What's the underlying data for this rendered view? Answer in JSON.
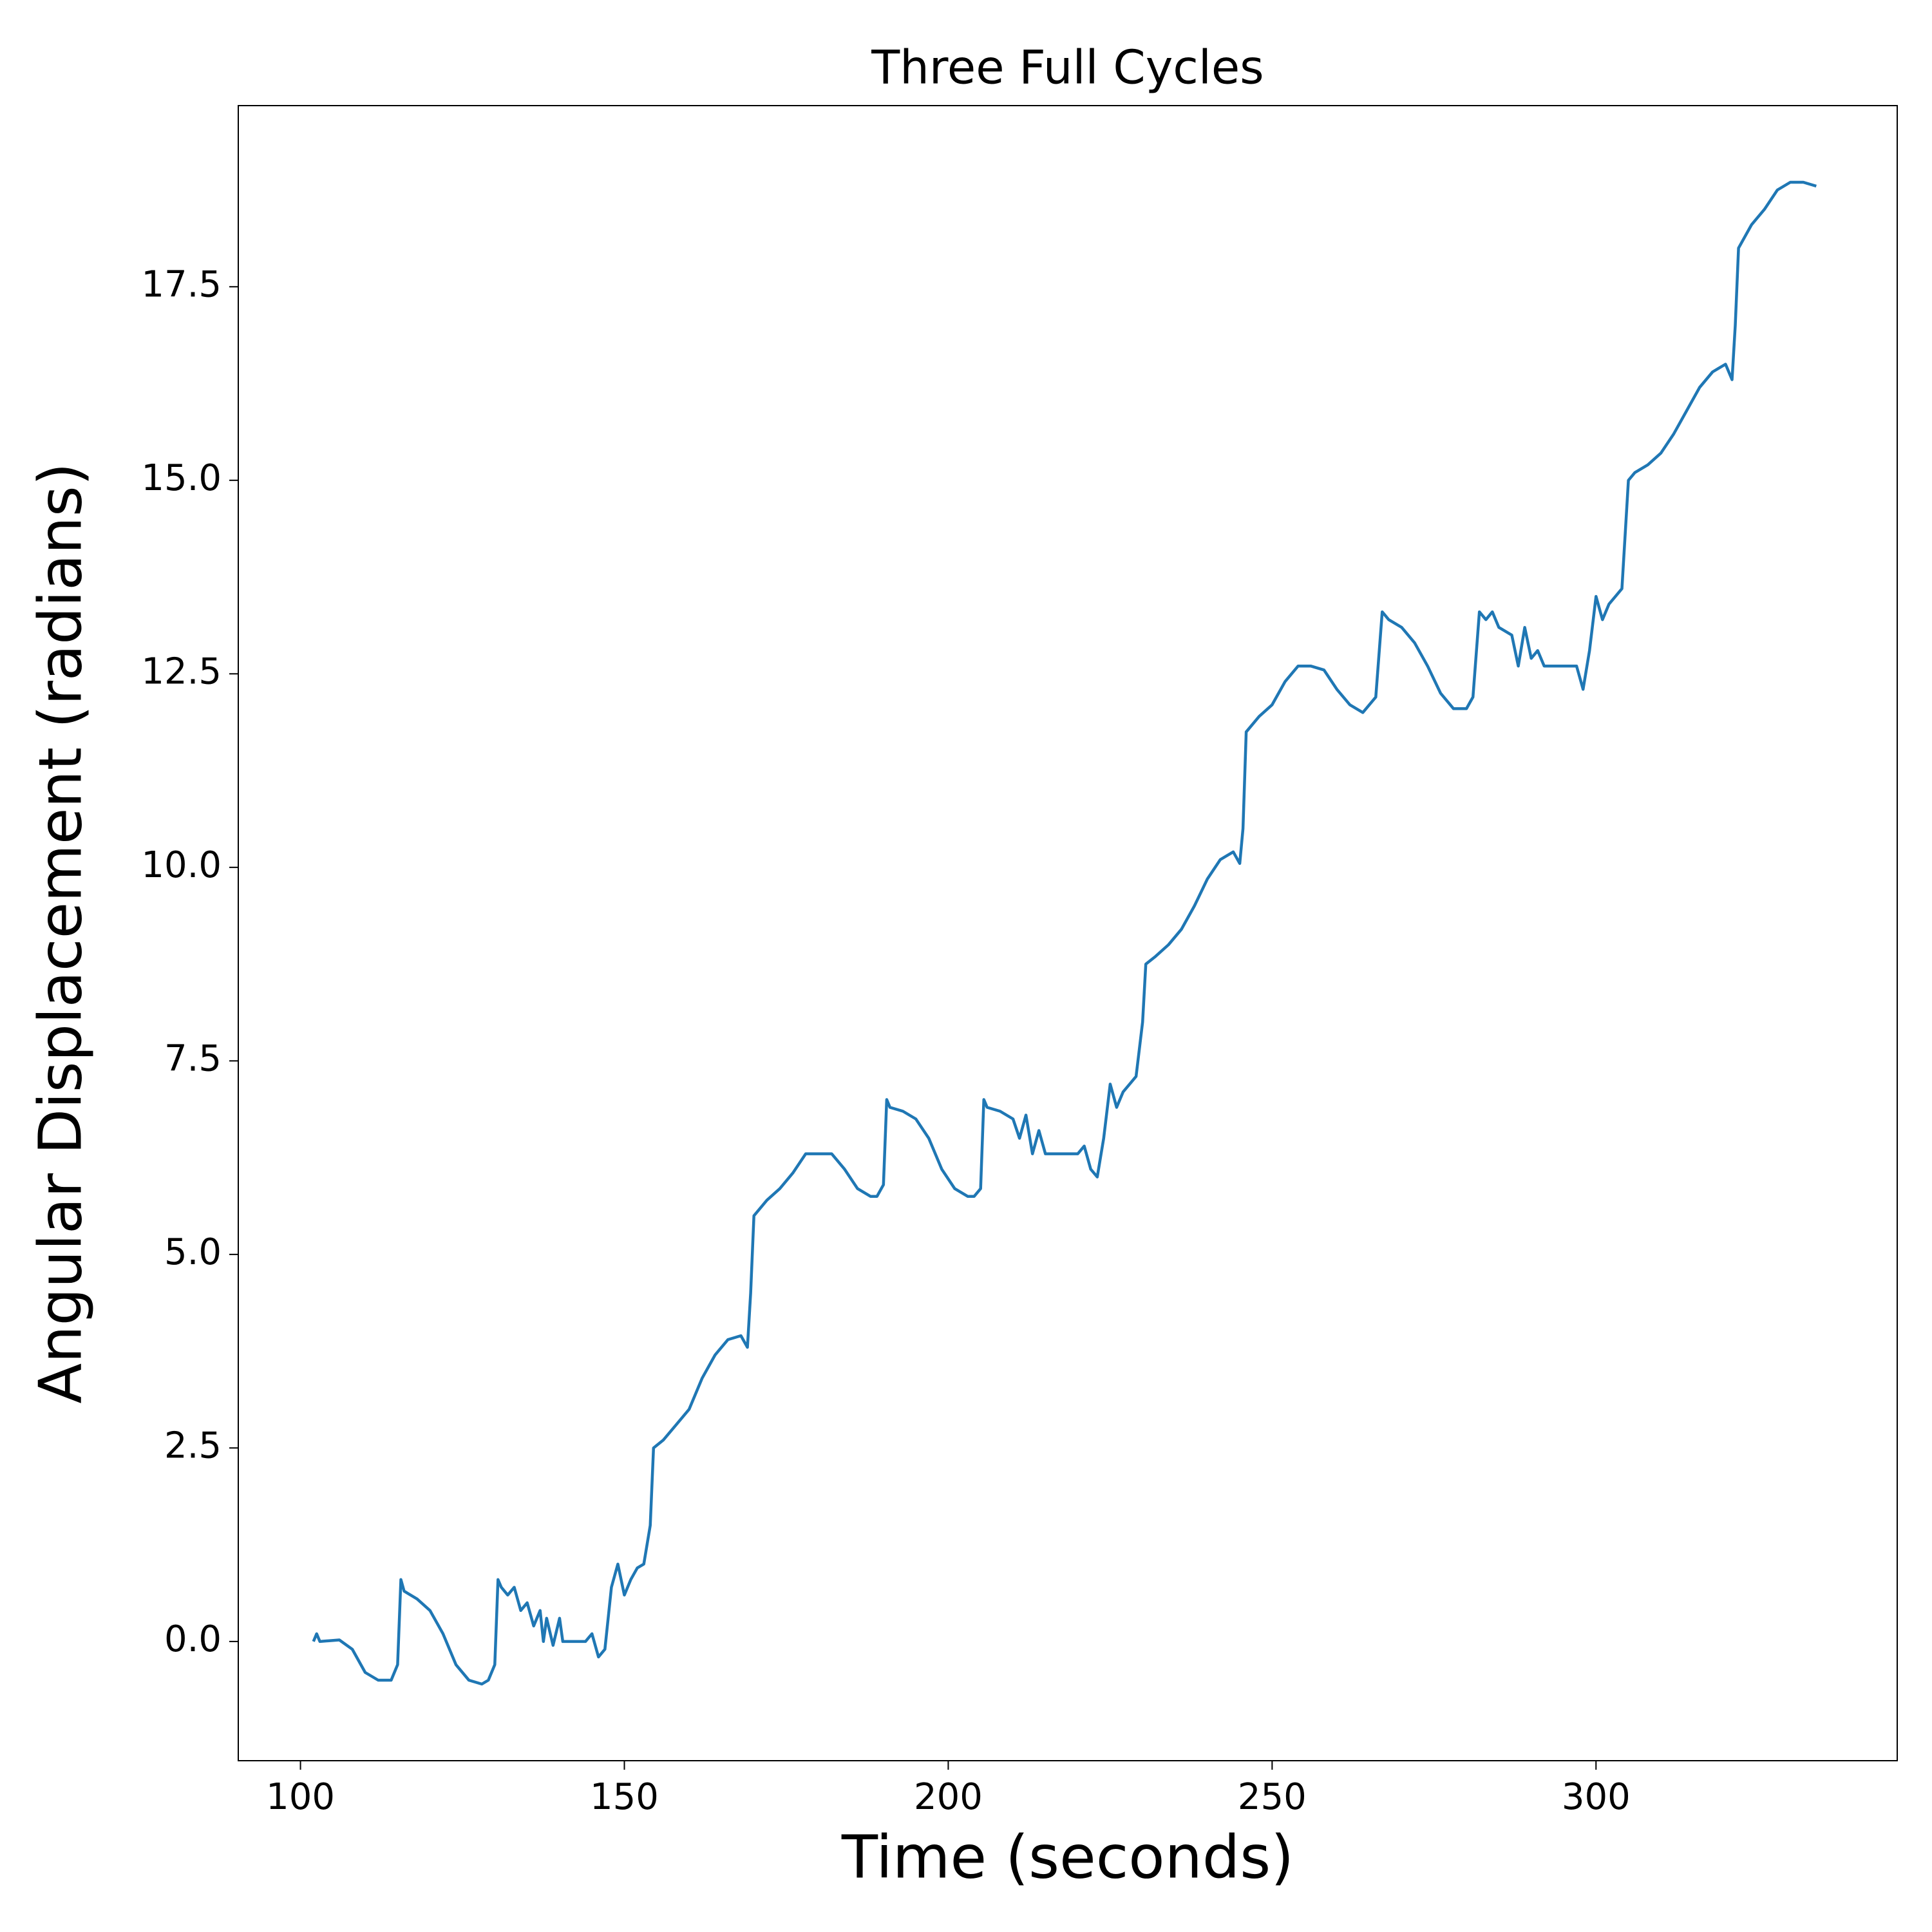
{
  "chart_data": {
    "type": "line",
    "title": "Three Full Cycles",
    "x_label": "Time (seconds)",
    "y_label": "Angular Displacement (radians)",
    "xlim": [
      90.4,
      346.5
    ],
    "ylim": [
      -1.54,
      19.84
    ],
    "xticks": [
      100,
      150,
      200,
      250,
      300
    ],
    "yticks": [
      {
        "value": 0,
        "label": "0.0"
      },
      2.5,
      {
        "value": 5,
        "label": "5.0"
      },
      7.5,
      {
        "value": 10,
        "label": "10.0"
      },
      12.5,
      {
        "value": 15,
        "label": "15.0"
      },
      17.5
    ],
    "grid": false,
    "series": [
      {
        "color": "#1f77b4",
        "x": [
          102,
          102.5,
          103,
          106,
          108,
          110,
          112,
          114,
          115,
          115.5,
          116,
          118,
          120,
          122,
          124,
          126,
          128,
          129,
          130,
          130.5,
          131,
          132,
          133,
          134,
          135,
          136,
          137,
          137.5,
          138,
          139,
          140,
          140.5,
          142,
          144,
          145,
          146,
          147,
          148,
          149,
          150,
          151,
          152,
          153,
          154,
          154.5,
          156,
          158,
          160,
          162,
          164,
          166,
          168,
          169,
          169.5,
          170,
          172,
          174,
          176,
          178,
          180,
          182,
          184,
          186,
          188,
          189,
          190,
          190.5,
          191,
          193,
          195,
          197,
          199,
          201,
          203,
          204,
          205,
          205.5,
          206,
          208,
          210,
          211,
          212,
          213,
          214,
          215,
          217,
          219,
          220,
          221,
          222,
          223,
          224,
          225,
          226,
          227,
          228,
          229,
          230,
          230.5,
          232,
          234,
          236,
          238,
          240,
          242,
          244,
          245,
          245.5,
          246,
          248,
          250,
          252,
          254,
          256,
          258,
          260,
          262,
          264,
          266,
          267,
          268,
          270,
          272,
          274,
          276,
          278,
          280,
          281,
          282,
          283,
          284,
          285,
          287,
          288,
          289,
          290,
          291,
          292,
          294,
          296,
          297,
          298,
          299,
          300,
          301,
          302,
          303,
          304,
          305,
          306,
          308,
          310,
          312,
          314,
          316,
          318,
          320,
          321,
          321.5,
          322,
          324,
          326,
          328,
          330,
          332,
          334
        ],
        "values": [
          0.0,
          0.1,
          0.0,
          0.02,
          -0.1,
          -0.4,
          -0.5,
          -0.5,
          -0.3,
          0.8,
          0.65,
          0.55,
          0.4,
          0.1,
          -0.3,
          -0.5,
          -0.55,
          -0.5,
          -0.3,
          0.8,
          0.7,
          0.6,
          0.7,
          0.4,
          0.5,
          0.2,
          0.4,
          0.0,
          0.3,
          -0.05,
          0.3,
          0.0,
          0.0,
          0.0,
          0.1,
          -0.2,
          -0.1,
          0.7,
          1.0,
          0.6,
          0.8,
          0.95,
          1.0,
          1.5,
          2.5,
          2.6,
          2.8,
          3.0,
          3.4,
          3.7,
          3.9,
          3.95,
          3.8,
          4.5,
          5.5,
          5.7,
          5.85,
          6.05,
          6.3,
          6.3,
          6.3,
          6.1,
          5.85,
          5.75,
          5.75,
          5.9,
          7.0,
          6.9,
          6.85,
          6.75,
          6.5,
          6.1,
          5.85,
          5.75,
          5.75,
          5.85,
          7.0,
          6.9,
          6.85,
          6.75,
          6.5,
          6.8,
          6.3,
          6.6,
          6.3,
          6.3,
          6.3,
          6.3,
          6.4,
          6.1,
          6.0,
          6.5,
          7.2,
          6.9,
          7.1,
          7.2,
          7.3,
          8.0,
          8.75,
          8.85,
          9.0,
          9.2,
          9.5,
          9.85,
          10.1,
          10.2,
          10.05,
          10.5,
          11.75,
          11.95,
          12.1,
          12.4,
          12.6,
          12.6,
          12.55,
          12.3,
          12.1,
          12.0,
          12.2,
          13.3,
          13.2,
          13.1,
          12.9,
          12.6,
          12.25,
          12.05,
          12.05,
          12.2,
          13.3,
          13.2,
          13.3,
          13.1,
          13.0,
          12.6,
          13.1,
          12.7,
          12.8,
          12.6,
          12.6,
          12.6,
          12.6,
          12.3,
          12.8,
          13.5,
          13.2,
          13.4,
          13.5,
          13.6,
          15.0,
          15.1,
          15.2,
          15.35,
          15.6,
          15.9,
          16.2,
          16.4,
          16.5,
          16.3,
          17.0,
          18.0,
          18.3,
          18.5,
          18.75,
          18.85,
          18.85,
          18.8
        ]
      }
    ]
  }
}
